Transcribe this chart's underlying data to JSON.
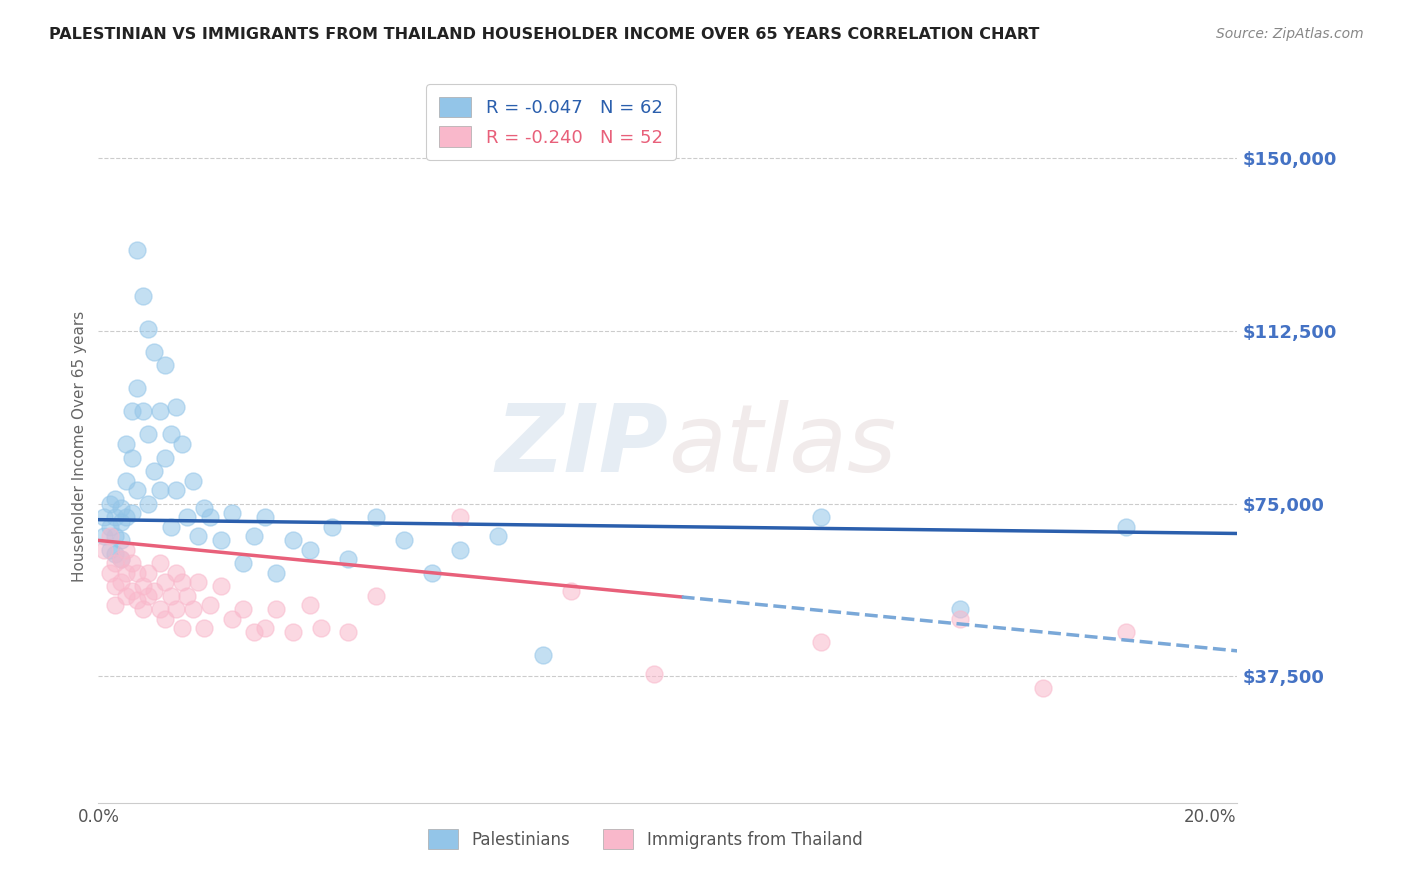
{
  "title": "PALESTINIAN VS IMMIGRANTS FROM THAILAND HOUSEHOLDER INCOME OVER 65 YEARS CORRELATION CHART",
  "source": "Source: ZipAtlas.com",
  "ylabel": "Householder Income Over 65 years",
  "ytick_labels": [
    "$37,500",
    "$75,000",
    "$112,500",
    "$150,000"
  ],
  "ytick_values": [
    37500,
    75000,
    112500,
    150000
  ],
  "ylim": [
    10000,
    165000
  ],
  "xlim": [
    0.0,
    0.205
  ],
  "watermark_zip": "ZIP",
  "watermark_atlas": "atlas",
  "bg_color": "#ffffff",
  "grid_color": "#cccccc",
  "blue_fill": "#93c5e8",
  "pink_fill": "#f9b8cb",
  "blue_line_color": "#2b5fad",
  "pink_line_color": "#e8607a",
  "dash_line_color": "#7aa8d8",
  "ytick_color": "#4472c4",
  "palestinians_x": [
    0.001,
    0.001,
    0.002,
    0.002,
    0.002,
    0.003,
    0.003,
    0.003,
    0.003,
    0.004,
    0.004,
    0.004,
    0.004,
    0.005,
    0.005,
    0.005,
    0.006,
    0.006,
    0.006,
    0.007,
    0.007,
    0.007,
    0.008,
    0.008,
    0.009,
    0.009,
    0.009,
    0.01,
    0.01,
    0.011,
    0.011,
    0.012,
    0.012,
    0.013,
    0.013,
    0.014,
    0.014,
    0.015,
    0.016,
    0.017,
    0.018,
    0.019,
    0.02,
    0.022,
    0.024,
    0.026,
    0.028,
    0.03,
    0.032,
    0.035,
    0.038,
    0.042,
    0.045,
    0.05,
    0.055,
    0.06,
    0.065,
    0.072,
    0.08,
    0.13,
    0.155,
    0.185
  ],
  "palestinians_y": [
    72000,
    68000,
    75000,
    70000,
    65000,
    76000,
    72000,
    68000,
    64000,
    74000,
    71000,
    67000,
    63000,
    88000,
    80000,
    72000,
    95000,
    85000,
    73000,
    130000,
    100000,
    78000,
    120000,
    95000,
    113000,
    90000,
    75000,
    108000,
    82000,
    95000,
    78000,
    105000,
    85000,
    90000,
    70000,
    96000,
    78000,
    88000,
    72000,
    80000,
    68000,
    74000,
    72000,
    67000,
    73000,
    62000,
    68000,
    72000,
    60000,
    67000,
    65000,
    70000,
    63000,
    72000,
    67000,
    60000,
    65000,
    68000,
    42000,
    72000,
    52000,
    70000
  ],
  "thailand_x": [
    0.001,
    0.002,
    0.002,
    0.003,
    0.003,
    0.003,
    0.004,
    0.004,
    0.005,
    0.005,
    0.005,
    0.006,
    0.006,
    0.007,
    0.007,
    0.008,
    0.008,
    0.009,
    0.009,
    0.01,
    0.011,
    0.011,
    0.012,
    0.012,
    0.013,
    0.014,
    0.014,
    0.015,
    0.015,
    0.016,
    0.017,
    0.018,
    0.019,
    0.02,
    0.022,
    0.024,
    0.026,
    0.028,
    0.03,
    0.032,
    0.035,
    0.038,
    0.04,
    0.045,
    0.05,
    0.065,
    0.085,
    0.1,
    0.13,
    0.155,
    0.17,
    0.185
  ],
  "thailand_y": [
    65000,
    68000,
    60000,
    62000,
    57000,
    53000,
    63000,
    58000,
    65000,
    60000,
    55000,
    62000,
    56000,
    60000,
    54000,
    57000,
    52000,
    60000,
    55000,
    56000,
    62000,
    52000,
    58000,
    50000,
    55000,
    60000,
    52000,
    58000,
    48000,
    55000,
    52000,
    58000,
    48000,
    53000,
    57000,
    50000,
    52000,
    47000,
    48000,
    52000,
    47000,
    53000,
    48000,
    47000,
    55000,
    72000,
    56000,
    38000,
    45000,
    50000,
    35000,
    47000
  ]
}
